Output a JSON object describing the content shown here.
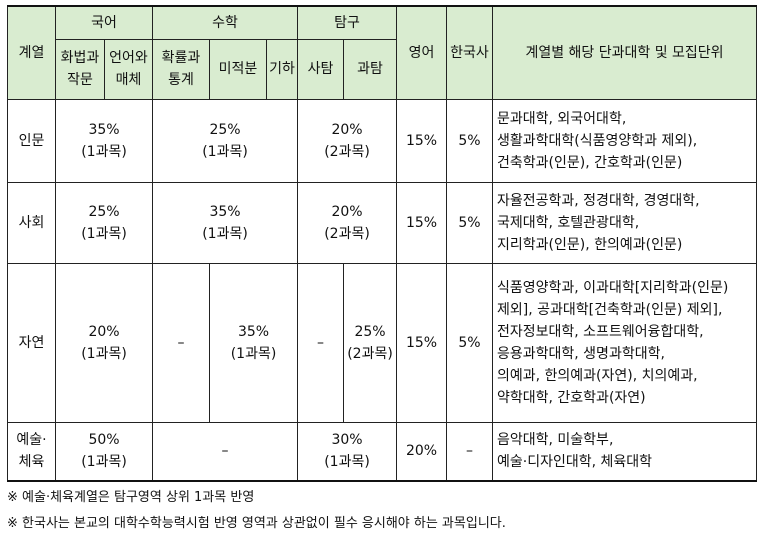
{
  "header": {
    "track": "계열",
    "korean": "국어",
    "korean_sub1": [
      "화법과",
      "작문"
    ],
    "korean_sub2": [
      "언어와",
      "매체"
    ],
    "math": "수학",
    "math_sub1": [
      "확률과",
      "통계"
    ],
    "math_sub2": "미적분",
    "math_sub3": "기하",
    "inquiry": "탐구",
    "inquiry_sub1": "사탐",
    "inquiry_sub2": "과탐",
    "english": "영어",
    "history": "한국사",
    "units": "계열별 해당 단과대학 및 모집단위"
  },
  "rows": {
    "humanities": {
      "track": "인문",
      "korean": [
        "35%",
        "(1과목)"
      ],
      "math": [
        "25%",
        "(1과목)"
      ],
      "inquiry": [
        "20%",
        "(2과목)"
      ],
      "english": "15%",
      "history": "5%",
      "units": [
        "문과대학, 외국어대학,",
        "생활과학대학(식품영양학과 제외),",
        "건축학과(인문), 간호학과(인문)"
      ]
    },
    "social": {
      "track": "사회",
      "korean": [
        "25%",
        "(1과목)"
      ],
      "math": [
        "35%",
        "(1과목)"
      ],
      "inquiry": [
        "20%",
        "(2과목)"
      ],
      "english": "15%",
      "history": "5%",
      "units": [
        "자율전공학과, 정경대학, 경영대학,",
        "국제대학, 호텔관광대학,",
        "지리학과(인문), 한의예과(인문)"
      ]
    },
    "natural": {
      "track": "자연",
      "korean": [
        "20%",
        "(1과목)"
      ],
      "math_dash": "–",
      "math": [
        "35%",
        "(1과목)"
      ],
      "inquiry_dash": "–",
      "inquiry": [
        "25%",
        "(2과목)"
      ],
      "english": "15%",
      "history": "5%",
      "units": [
        "식품영양학과, 이과대학[지리학과(인문)",
        "제외], 공과대학[건축학과(인문) 제외],",
        "전자정보대학, 소프트웨어융합대학,",
        "응용과학대학, 생명과학대학,",
        "의예과, 한의예과(자연), 치의예과,",
        "약학대학, 간호학과(자연)"
      ]
    },
    "arts": {
      "track": [
        "예술·",
        "체육"
      ],
      "korean": [
        "50%",
        "(1과목)"
      ],
      "math": "–",
      "inquiry": [
        "30%",
        "(1과목)"
      ],
      "english": "20%",
      "history": "–",
      "units": [
        "음악대학, 미술학부,",
        "예술·디자인대학, 체육대학"
      ]
    }
  },
  "notes": [
    "※ 예술·체육계열은 탐구영역 상위 1과목 반영",
    "※ 한국사는 본교의 대학수학능력시험 반영 영역과 상관없이 필수 응시해야 하는 과목입니다."
  ]
}
